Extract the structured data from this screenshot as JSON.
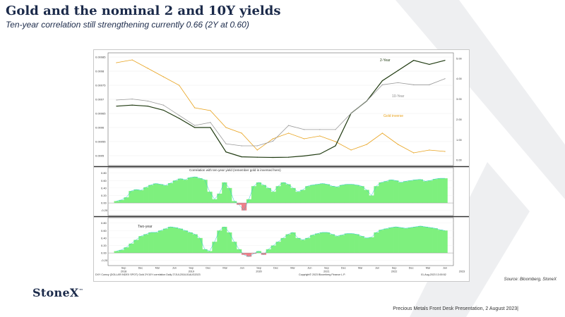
{
  "header": {
    "title": "Gold and the nominal 2 and 10Y yields",
    "subtitle": "Ten-year correlation still strengthening currently 0.66 (2Y at 0.60)"
  },
  "source_text": "Source:  Bloomberg,  StoneX",
  "footer_text": "Precious Metals Front Desk Presentation, 2 August 2023|",
  "logo_text": "StoneX",
  "colors": {
    "title": "#1b2a4a",
    "gold": "#e8a21c",
    "two_year": "#1f3a10",
    "ten_year": "#9a9a9a",
    "corr_pos": "#7ef07e",
    "corr_neg": "#f07e8a",
    "corr_edge": "#26c9d4"
  },
  "chart_data": [
    {
      "type": "line",
      "title": "",
      "x_dates": [
        "2018-07-01",
        "2018-09-01",
        "2018-12-01",
        "2019-03-01",
        "2019-06-01",
        "2019-09-01",
        "2019-12-01",
        "2020-03-01",
        "2020-06-01",
        "2020-09-01",
        "2020-12-01",
        "2021-03-01",
        "2021-06-01",
        "2021-09-01",
        "2021-12-01",
        "2022-03-01",
        "2022-06-01",
        "2022-09-01",
        "2022-12-01",
        "2023-03-01",
        "2023-06-01",
        "2023-08-01"
      ],
      "left_axis_ticks": [
        "0.00085",
        "0.0008",
        "0.00075",
        "0.0007",
        "0.00065",
        "0.0006",
        "0.00055",
        "0.0005"
      ],
      "right_axis_ticks": [
        "5.00",
        "4.00",
        "3.00",
        "2.00",
        "1.00",
        "0.00"
      ],
      "left_ylim": [
        0.00047,
        0.00086
      ],
      "right_ylim": [
        -0.2,
        5.2
      ],
      "series": [
        {
          "name": "Gold inverse",
          "axis": "left",
          "values": [
            0.00083,
            0.00084,
            0.00081,
            0.00078,
            0.00075,
            0.00067,
            0.00066,
            0.0006,
            0.00058,
            0.00052,
            0.00056,
            0.00058,
            0.00056,
            0.00057,
            0.00055,
            0.00052,
            0.00054,
            0.00058,
            0.00054,
            0.00051,
            0.00052,
            0.000515
          ]
        },
        {
          "name": "2-Year",
          "axis": "right",
          "values": [
            2.65,
            2.7,
            2.65,
            2.45,
            2.05,
            1.6,
            1.6,
            0.4,
            0.16,
            0.14,
            0.13,
            0.14,
            0.2,
            0.3,
            0.7,
            2.3,
            2.9,
            3.9,
            4.4,
            4.9,
            4.7,
            4.9
          ]
        },
        {
          "name": "10-Year",
          "axis": "right",
          "values": [
            2.95,
            3.0,
            2.9,
            2.7,
            2.2,
            1.7,
            1.85,
            0.8,
            0.7,
            0.7,
            0.93,
            1.7,
            1.5,
            1.5,
            1.5,
            2.3,
            2.9,
            3.7,
            3.8,
            3.7,
            3.7,
            4.0
          ]
        }
      ]
    },
    {
      "type": "area",
      "title": "Correlation with ten-year yield (remember gold is inversed here)",
      "ylim": [
        -0.3,
        0.85
      ],
      "ticks": [
        "0.80",
        "0.60",
        "0.40",
        "0.20",
        "0.00",
        "-0.20"
      ],
      "values": [
        0.05,
        0.08,
        0.15,
        0.32,
        0.36,
        0.34,
        0.42,
        0.48,
        0.52,
        0.5,
        0.47,
        0.53,
        0.6,
        0.65,
        0.62,
        0.68,
        0.7,
        0.66,
        0.62,
        0.3,
        0.1,
        0.25,
        0.55,
        0.4,
        0.05,
        -0.05,
        -0.2,
        0.1,
        0.45,
        0.55,
        0.48,
        0.4,
        0.3,
        0.45,
        0.55,
        0.5,
        0.4,
        0.3,
        0.35,
        0.45,
        0.48,
        0.5,
        0.52,
        0.5,
        0.45,
        0.43,
        0.48,
        0.5,
        0.5,
        0.48,
        0.45,
        0.35,
        0.2,
        0.45,
        0.55,
        0.58,
        0.62,
        0.6,
        0.55,
        0.58,
        0.6,
        0.62,
        0.63,
        0.58,
        0.6,
        0.64,
        0.66,
        0.66
      ]
    },
    {
      "type": "area",
      "title": "Two-year",
      "ylim": [
        -0.3,
        0.85
      ],
      "ticks": [
        "0.80",
        "0.60",
        "0.40",
        "0.20",
        "0.00",
        "-0.20"
      ],
      "values": [
        0.05,
        0.08,
        0.15,
        0.25,
        0.35,
        0.45,
        0.5,
        0.55,
        0.55,
        0.6,
        0.65,
        0.7,
        0.68,
        0.65,
        0.6,
        0.55,
        0.5,
        0.4,
        0.1,
        0.05,
        0.3,
        0.6,
        0.7,
        0.55,
        0.3,
        0.1,
        -0.05,
        -0.1,
        -0.02,
        0.05,
        -0.05,
        0.1,
        0.2,
        0.3,
        0.4,
        0.5,
        0.55,
        0.4,
        0.35,
        0.4,
        0.48,
        0.52,
        0.55,
        0.55,
        0.5,
        0.45,
        0.48,
        0.52,
        0.52,
        0.5,
        0.45,
        0.4,
        0.42,
        0.55,
        0.62,
        0.65,
        0.68,
        0.7,
        0.68,
        0.66,
        0.68,
        0.7,
        0.72,
        0.7,
        0.68,
        0.66,
        0.62,
        0.6
      ]
    }
  ],
  "x_tick_labels": [
    "Sep",
    "Dec",
    "Mar",
    "Jun",
    "Sep",
    "Dec",
    "Mar",
    "Jun",
    "Sep",
    "Dec",
    "Mar",
    "Jun",
    "Sep",
    "Dec",
    "Mar",
    "Jun",
    "Sep",
    "Dec",
    "Mar",
    "Jun"
  ],
  "year_labels": [
    "2018",
    "2019",
    "2020",
    "2021",
    "2022",
    "2023"
  ],
  "panel_labels": {
    "two_year": "2-Year",
    "ten_year": "10-Year",
    "gold": "Gold inverse"
  },
  "bottom_left_text": "DXY Curncy  (DOLLAR INDEX SPOT) Gold 2Y/10Y correlation  Daily 27JUL2018-01AUG2023",
  "bottom_mid_text": "Copyright© 2023 Bloomberg Finance L.P.",
  "bottom_right_text": "01-Aug-2023 13:00:52"
}
